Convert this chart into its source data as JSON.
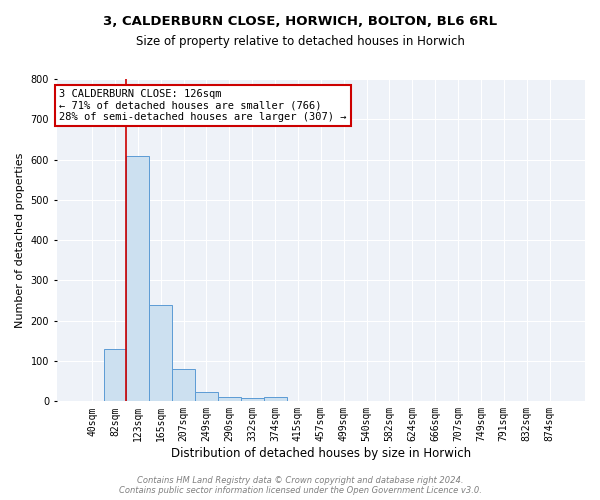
{
  "title": "3, CALDERBURN CLOSE, HORWICH, BOLTON, BL6 6RL",
  "subtitle": "Size of property relative to detached houses in Horwich",
  "xlabel": "Distribution of detached houses by size in Horwich",
  "ylabel": "Number of detached properties",
  "bin_labels": [
    "40sqm",
    "82sqm",
    "123sqm",
    "165sqm",
    "207sqm",
    "249sqm",
    "290sqm",
    "332sqm",
    "374sqm",
    "415sqm",
    "457sqm",
    "499sqm",
    "540sqm",
    "582sqm",
    "624sqm",
    "666sqm",
    "707sqm",
    "749sqm",
    "791sqm",
    "832sqm",
    "874sqm"
  ],
  "bin_values": [
    0,
    130,
    610,
    238,
    80,
    22,
    10,
    8,
    10,
    0,
    0,
    0,
    0,
    0,
    0,
    0,
    0,
    0,
    0,
    0,
    0
  ],
  "bar_color": "#cce0f0",
  "bar_edge_color": "#5b9bd5",
  "vline_x_index": 1.5,
  "vline_color": "#cc0000",
  "annotation_text": "3 CALDERBURN CLOSE: 126sqm\n← 71% of detached houses are smaller (766)\n28% of semi-detached houses are larger (307) →",
  "annotation_box_color": "#cc0000",
  "ylim": [
    0,
    800
  ],
  "yticks": [
    0,
    100,
    200,
    300,
    400,
    500,
    600,
    700,
    800
  ],
  "background_color": "#eef2f8",
  "footer_line1": "Contains HM Land Registry data © Crown copyright and database right 2024.",
  "footer_line2": "Contains public sector information licensed under the Open Government Licence v3.0.",
  "title_fontsize": 9.5,
  "subtitle_fontsize": 8.5,
  "xlabel_fontsize": 8.5,
  "ylabel_fontsize": 8,
  "tick_fontsize": 7,
  "annotation_fontsize": 7.5,
  "footer_fontsize": 6
}
